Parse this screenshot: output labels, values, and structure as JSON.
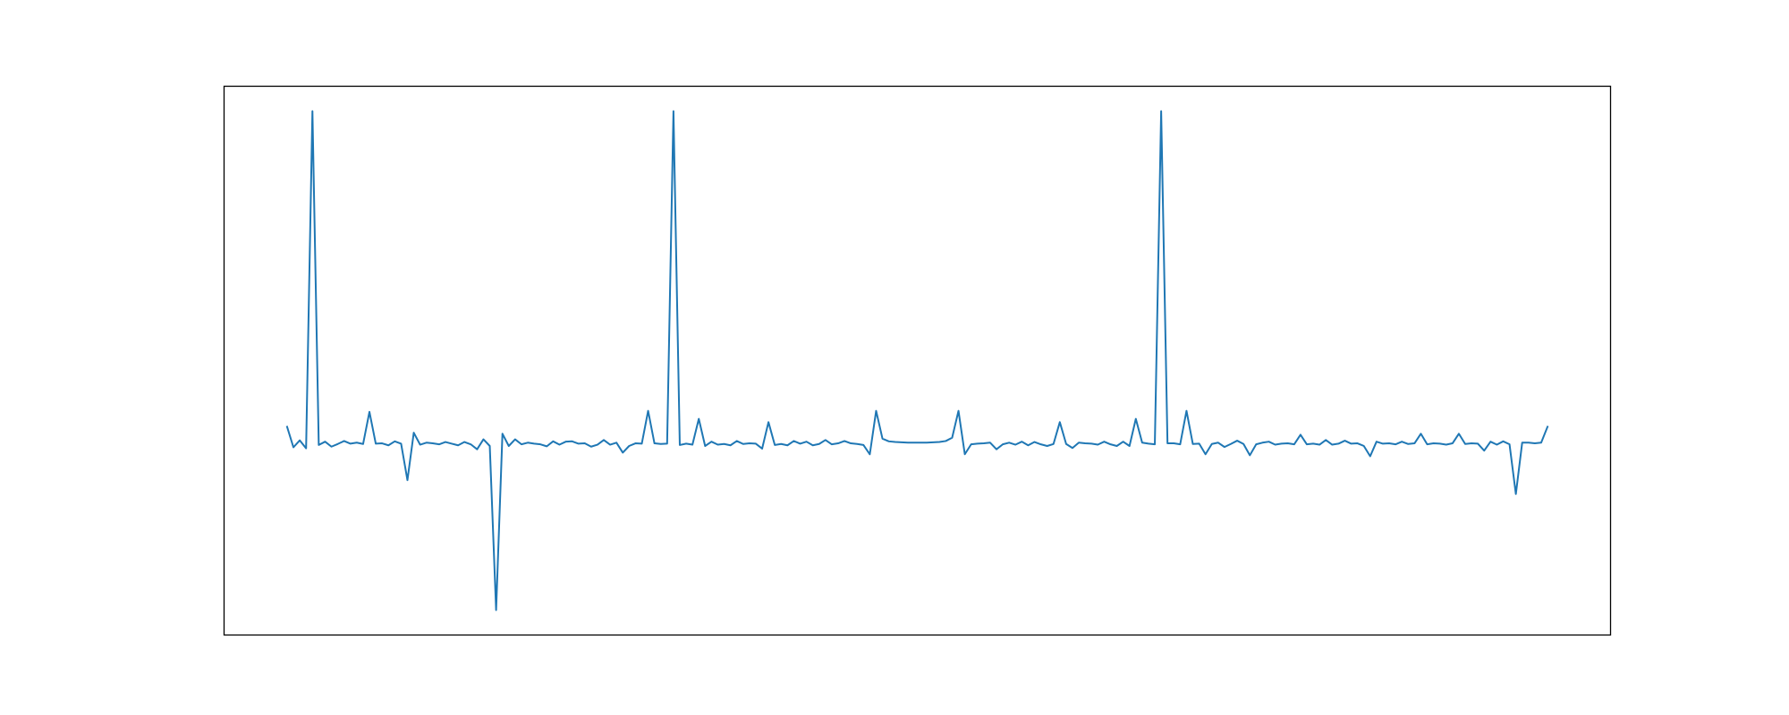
{
  "chart_data": {
    "type": "line",
    "color": "#1f77b4",
    "xlim": [
      -9.95,
      208.95
    ],
    "ylim": [
      -0.58025,
      1.07525
    ],
    "values": [
      0.048,
      -0.014,
      0.007,
      -0.017,
      1.0,
      -0.007,
      0.003,
      -0.012,
      -0.004,
      0.005,
      -0.003,
      0.0,
      -0.004,
      0.093,
      -0.003,
      -0.002,
      -0.008,
      0.004,
      -0.003,
      -0.113,
      0.03,
      -0.006,
      0.0,
      -0.002,
      -0.005,
      0.002,
      -0.003,
      -0.008,
      0.002,
      -0.005,
      -0.02,
      0.01,
      -0.01,
      -0.505,
      0.027,
      -0.01,
      0.01,
      -0.005,
      0.0,
      -0.003,
      -0.005,
      -0.011,
      0.004,
      -0.006,
      0.003,
      0.004,
      -0.003,
      -0.002,
      -0.012,
      -0.006,
      0.008,
      -0.006,
      0.0,
      -0.03,
      -0.01,
      -0.002,
      -0.003,
      0.096,
      -0.002,
      -0.004,
      -0.003,
      1.0,
      -0.007,
      -0.003,
      -0.006,
      0.072,
      -0.01,
      0.003,
      -0.006,
      -0.004,
      -0.008,
      0.005,
      -0.004,
      -0.002,
      -0.003,
      -0.018,
      0.062,
      -0.007,
      -0.004,
      -0.008,
      0.005,
      -0.003,
      0.003,
      -0.008,
      -0.004,
      0.008,
      -0.005,
      -0.002,
      0.005,
      -0.002,
      -0.004,
      -0.007,
      -0.035,
      0.096,
      0.012,
      0.004,
      0.002,
      0.001,
      0.0,
      0.0,
      0.0,
      0.0,
      0.001,
      0.002,
      0.005,
      0.015,
      0.096,
      -0.035,
      -0.005,
      -0.003,
      -0.002,
      0.0,
      -0.02,
      -0.005,
      0.0,
      -0.006,
      0.003,
      -0.008,
      0.002,
      -0.005,
      -0.01,
      -0.004,
      0.062,
      -0.004,
      -0.016,
      0.0,
      -0.002,
      -0.003,
      -0.006,
      0.003,
      -0.005,
      -0.01,
      0.003,
      -0.01,
      0.072,
      0.0,
      -0.003,
      -0.005,
      1.0,
      -0.002,
      -0.002,
      -0.005,
      0.096,
      -0.004,
      -0.003,
      -0.035,
      -0.004,
      0.0,
      -0.013,
      -0.004,
      0.006,
      -0.004,
      -0.038,
      -0.005,
      0.0,
      0.003,
      -0.006,
      -0.003,
      -0.002,
      -0.005,
      0.024,
      -0.005,
      -0.003,
      -0.006,
      0.008,
      -0.006,
      -0.003,
      0.006,
      -0.003,
      -0.002,
      -0.01,
      -0.041,
      0.003,
      -0.003,
      -0.002,
      -0.005,
      0.003,
      -0.004,
      -0.002,
      0.027,
      -0.005,
      -0.002,
      -0.003,
      -0.006,
      -0.002,
      0.027,
      -0.004,
      -0.002,
      -0.003,
      -0.024,
      0.003,
      -0.006,
      0.004,
      -0.005,
      -0.155,
      0.0,
      0.0,
      -0.002,
      0.0,
      0.048
    ]
  }
}
